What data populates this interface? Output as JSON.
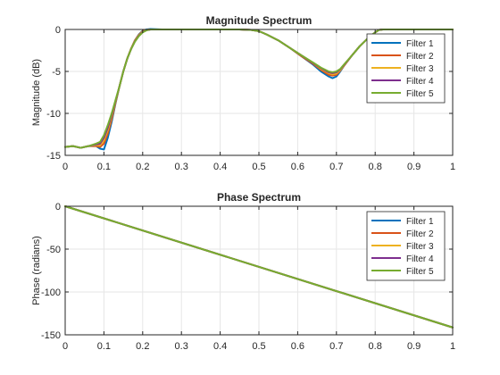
{
  "chart_data": [
    {
      "type": "line",
      "title": "Magnitude Spectrum",
      "xlabel": "",
      "ylabel": "Magnitude (dB)",
      "xlim": [
        0,
        1
      ],
      "ylim": [
        -15,
        0
      ],
      "xticks": [
        "0",
        "0.1",
        "0.2",
        "0.3",
        "0.4",
        "0.5",
        "0.6",
        "0.7",
        "0.8",
        "0.9",
        "1"
      ],
      "yticks": [
        "0",
        "-5",
        "-10",
        "-15"
      ],
      "grid": true,
      "legend_position": "top-right",
      "series": [
        {
          "name": "Filter 1",
          "color": "#0072BD",
          "x": [
            0,
            0.02,
            0.04,
            0.06,
            0.08,
            0.09,
            0.1,
            0.11,
            0.12,
            0.13,
            0.14,
            0.15,
            0.16,
            0.17,
            0.18,
            0.19,
            0.2,
            0.21,
            0.22,
            0.25,
            0.3,
            0.35,
            0.4,
            0.45,
            0.48,
            0.5,
            0.52,
            0.55,
            0.58,
            0.61,
            0.64,
            0.66,
            0.68,
            0.69,
            0.7,
            0.71,
            0.72,
            0.74,
            0.76,
            0.78,
            0.8,
            0.81,
            0.82,
            0.85,
            0.9,
            0.95,
            1.0
          ],
          "y": [
            -14.0,
            -13.9,
            -14.1,
            -13.9,
            -13.9,
            -14.2,
            -14.3,
            -12.9,
            -11.0,
            -8.8,
            -6.8,
            -5.0,
            -3.5,
            -2.3,
            -1.3,
            -0.6,
            -0.15,
            0.0,
            0.05,
            0.0,
            0.0,
            0.0,
            0.0,
            0.0,
            -0.05,
            -0.2,
            -0.6,
            -1.3,
            -2.2,
            -3.2,
            -4.2,
            -5.0,
            -5.6,
            -5.8,
            -5.6,
            -5.0,
            -4.3,
            -3.1,
            -2.0,
            -1.1,
            -0.35,
            -0.05,
            0.0,
            0.0,
            0.0,
            0.0,
            0.0
          ]
        },
        {
          "name": "Filter 2",
          "color": "#D95319",
          "x": [
            0,
            0.02,
            0.04,
            0.06,
            0.08,
            0.09,
            0.1,
            0.11,
            0.12,
            0.13,
            0.14,
            0.15,
            0.16,
            0.17,
            0.18,
            0.19,
            0.2,
            0.21,
            0.22,
            0.25,
            0.3,
            0.35,
            0.4,
            0.45,
            0.48,
            0.5,
            0.52,
            0.55,
            0.58,
            0.61,
            0.64,
            0.66,
            0.68,
            0.69,
            0.7,
            0.71,
            0.72,
            0.74,
            0.76,
            0.78,
            0.8,
            0.81,
            0.82,
            0.85,
            0.9,
            0.95,
            1.0
          ],
          "y": [
            -14.0,
            -13.9,
            -14.1,
            -13.9,
            -13.9,
            -14.0,
            -13.6,
            -12.4,
            -10.7,
            -8.7,
            -6.8,
            -5.0,
            -3.5,
            -2.3,
            -1.3,
            -0.65,
            -0.2,
            -0.05,
            0.0,
            0.0,
            0.0,
            0.0,
            0.0,
            0.0,
            -0.05,
            -0.2,
            -0.6,
            -1.3,
            -2.2,
            -3.2,
            -4.1,
            -4.8,
            -5.4,
            -5.5,
            -5.4,
            -4.9,
            -4.3,
            -3.1,
            -2.0,
            -1.1,
            -0.35,
            -0.05,
            0.0,
            0.0,
            0.0,
            0.0,
            0.0
          ]
        },
        {
          "name": "Filter 3",
          "color": "#EDB120",
          "x": [
            0,
            0.02,
            0.04,
            0.06,
            0.08,
            0.09,
            0.1,
            0.11,
            0.12,
            0.13,
            0.14,
            0.15,
            0.16,
            0.17,
            0.18,
            0.19,
            0.2,
            0.21,
            0.22,
            0.25,
            0.3,
            0.35,
            0.4,
            0.45,
            0.48,
            0.5,
            0.52,
            0.55,
            0.58,
            0.61,
            0.64,
            0.66,
            0.68,
            0.69,
            0.7,
            0.71,
            0.72,
            0.74,
            0.76,
            0.78,
            0.8,
            0.81,
            0.82,
            0.85,
            0.9,
            0.95,
            1.0
          ],
          "y": [
            -14.0,
            -13.9,
            -14.1,
            -13.9,
            -13.8,
            -13.8,
            -13.2,
            -12.0,
            -10.4,
            -8.6,
            -6.8,
            -5.0,
            -3.5,
            -2.3,
            -1.35,
            -0.7,
            -0.25,
            -0.05,
            0.0,
            0.0,
            0.0,
            0.0,
            0.0,
            0.0,
            -0.05,
            -0.2,
            -0.6,
            -1.3,
            -2.2,
            -3.1,
            -4.0,
            -4.7,
            -5.2,
            -5.35,
            -5.25,
            -4.85,
            -4.25,
            -3.1,
            -2.0,
            -1.1,
            -0.35,
            -0.05,
            0.0,
            0.0,
            0.0,
            0.0,
            0.0
          ]
        },
        {
          "name": "Filter 4",
          "color": "#7E2F8E",
          "x": [
            0,
            0.02,
            0.04,
            0.06,
            0.08,
            0.09,
            0.1,
            0.11,
            0.12,
            0.13,
            0.14,
            0.15,
            0.16,
            0.17,
            0.18,
            0.19,
            0.2,
            0.21,
            0.22,
            0.25,
            0.3,
            0.35,
            0.4,
            0.45,
            0.48,
            0.5,
            0.52,
            0.55,
            0.58,
            0.61,
            0.64,
            0.66,
            0.68,
            0.69,
            0.7,
            0.71,
            0.72,
            0.74,
            0.76,
            0.78,
            0.8,
            0.81,
            0.82,
            0.85,
            0.9,
            0.95,
            1.0
          ],
          "y": [
            -14.0,
            -13.9,
            -14.1,
            -13.9,
            -13.7,
            -13.6,
            -12.9,
            -11.7,
            -10.2,
            -8.5,
            -6.8,
            -5.0,
            -3.5,
            -2.35,
            -1.4,
            -0.75,
            -0.3,
            -0.08,
            0.0,
            0.0,
            0.0,
            0.0,
            0.0,
            0.0,
            -0.05,
            -0.2,
            -0.6,
            -1.3,
            -2.2,
            -3.1,
            -4.0,
            -4.6,
            -5.1,
            -5.2,
            -5.1,
            -4.75,
            -4.2,
            -3.1,
            -2.0,
            -1.1,
            -0.35,
            -0.05,
            0.0,
            0.0,
            0.0,
            0.0,
            0.0
          ]
        },
        {
          "name": "Filter 5",
          "color": "#77AC30",
          "x": [
            0,
            0.02,
            0.04,
            0.06,
            0.08,
            0.09,
            0.1,
            0.11,
            0.12,
            0.13,
            0.14,
            0.15,
            0.16,
            0.17,
            0.18,
            0.19,
            0.2,
            0.21,
            0.22,
            0.25,
            0.3,
            0.35,
            0.4,
            0.45,
            0.48,
            0.5,
            0.52,
            0.55,
            0.58,
            0.61,
            0.64,
            0.66,
            0.68,
            0.69,
            0.7,
            0.71,
            0.72,
            0.74,
            0.76,
            0.78,
            0.8,
            0.81,
            0.82,
            0.85,
            0.9,
            0.95,
            1.0
          ],
          "y": [
            -14.0,
            -13.9,
            -14.1,
            -13.9,
            -13.6,
            -13.4,
            -12.6,
            -11.4,
            -10.0,
            -8.4,
            -6.8,
            -5.0,
            -3.5,
            -2.35,
            -1.45,
            -0.8,
            -0.35,
            -0.1,
            0.0,
            0.0,
            0.0,
            0.0,
            0.0,
            0.0,
            -0.05,
            -0.2,
            -0.6,
            -1.3,
            -2.2,
            -3.1,
            -3.95,
            -4.55,
            -5.0,
            -5.1,
            -5.0,
            -4.7,
            -4.15,
            -3.1,
            -2.0,
            -1.1,
            -0.35,
            -0.05,
            0.0,
            0.0,
            0.0,
            0.0,
            0.0
          ]
        }
      ]
    },
    {
      "type": "line",
      "title": "Phase Spectrum",
      "xlabel": "",
      "ylabel": "Phase (radians)",
      "xlim": [
        0,
        1
      ],
      "ylim": [
        -150,
        0
      ],
      "xticks": [
        "0",
        "0.1",
        "0.2",
        "0.3",
        "0.4",
        "0.5",
        "0.6",
        "0.7",
        "0.8",
        "0.9",
        "1"
      ],
      "yticks": [
        "0",
        "-50",
        "-100",
        "-150"
      ],
      "grid": true,
      "legend_position": "top-right",
      "series": [
        {
          "name": "Filter 1",
          "color": "#0072BD",
          "x": [
            0,
            1
          ],
          "y": [
            0,
            -141.4
          ]
        },
        {
          "name": "Filter 2",
          "color": "#D95319",
          "x": [
            0,
            1
          ],
          "y": [
            0,
            -141.4
          ]
        },
        {
          "name": "Filter 3",
          "color": "#EDB120",
          "x": [
            0,
            1
          ],
          "y": [
            0,
            -141.4
          ]
        },
        {
          "name": "Filter 4",
          "color": "#7E2F8E",
          "x": [
            0,
            1
          ],
          "y": [
            0,
            -141.4
          ]
        },
        {
          "name": "Filter 5",
          "color": "#77AC30",
          "x": [
            0,
            1
          ],
          "y": [
            0,
            -141.4
          ]
        }
      ]
    }
  ]
}
